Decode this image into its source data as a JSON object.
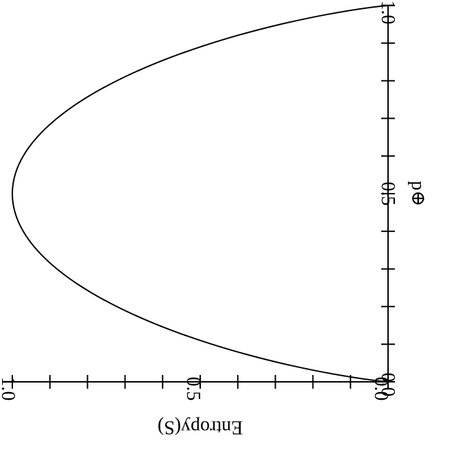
{
  "chart_data": {
    "type": "line",
    "title": "",
    "xlabel": "p⊕",
    "ylabel": "Entropy(S)",
    "xlim": [
      0.0,
      1.0
    ],
    "ylim": [
      0.0,
      1.0
    ],
    "x_ticks": [
      0.0,
      0.5,
      1.0
    ],
    "x_tick_labels": [
      "0.0",
      "0.5",
      "1.0"
    ],
    "y_ticks": [
      0.0,
      0.5,
      1.0
    ],
    "y_tick_labels": [
      "0.0",
      "0.5",
      "1.0"
    ],
    "minor_tick_step": 0.1,
    "grid": false,
    "orientation": "rotated 90° clockwise",
    "series": [
      {
        "function": "binary entropy -p·log2(p) - (1-p)·log2(1-p)",
        "x": [
          0.0,
          0.05,
          0.1,
          0.15,
          0.2,
          0.25,
          0.3,
          0.35,
          0.4,
          0.45,
          0.5,
          0.55,
          0.6,
          0.65,
          0.7,
          0.75,
          0.8,
          0.85,
          0.9,
          0.95,
          1.0
        ],
        "y": [
          0.0,
          0.286,
          0.469,
          0.61,
          0.722,
          0.811,
          0.881,
          0.934,
          0.971,
          0.993,
          1.0,
          0.993,
          0.971,
          0.934,
          0.881,
          0.811,
          0.722,
          0.61,
          0.469,
          0.286,
          0.0
        ],
        "color": "#000000"
      }
    ]
  }
}
